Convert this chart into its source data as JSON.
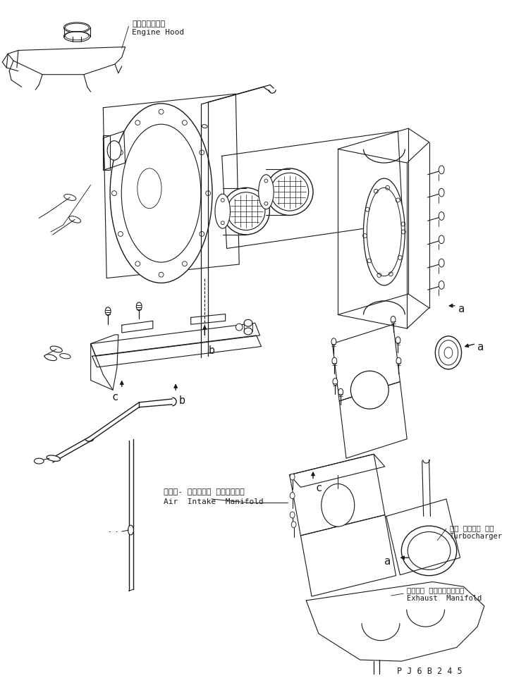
{
  "background_color": "#ffffff",
  "line_color": "#1a1a1a",
  "fig_width": 7.29,
  "fig_height": 9.69,
  "dpi": 100,
  "labels": {
    "engine_hood_ja": "エンジンフード",
    "engine_hood_en": "Engine Hood",
    "air_intake_ja": "エアー- インテーク マニホールド",
    "air_intake_en": "Air  Intake  Manifold",
    "turbocharger_ja": "ター ボチャー ジャ",
    "turbocharger_en": "Turbocharger",
    "exhaust_ja": "エキゾー ストマニホールド",
    "exhaust_en": "Exhaust  Manifold",
    "part_code": "P J 6 B 2 4 5"
  }
}
